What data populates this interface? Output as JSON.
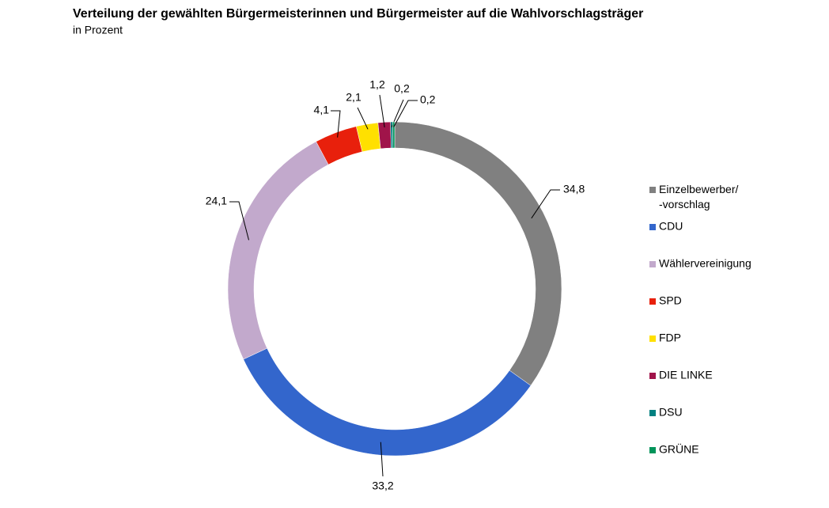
{
  "chart_data": {
    "type": "donut",
    "title": "Verteilung der gewählten Bürgermeisterinnen und Bürgermeister auf die Wahlvorschlagsträger",
    "subtitle": "in Prozent",
    "categories": [
      "Einzelbewerber/-vorschlag",
      "CDU",
      "Wählervereinigung",
      "SPD",
      "FDP",
      "DIE LINKE",
      "DSU",
      "GRÜNE"
    ],
    "values": [
      34.8,
      33.2,
      24.1,
      4.1,
      2.1,
      1.2,
      0.2,
      0.2
    ],
    "value_labels": [
      "34,8",
      "33,2",
      "24,1",
      "4,1",
      "2,1",
      "1,2",
      "0,2",
      "0,2"
    ],
    "colors": [
      "#808080",
      "#3366cc",
      "#c2a9cc",
      "#e8200c",
      "#ffe000",
      "#a0144a",
      "#008080",
      "#00945a"
    ],
    "legend": "right"
  }
}
